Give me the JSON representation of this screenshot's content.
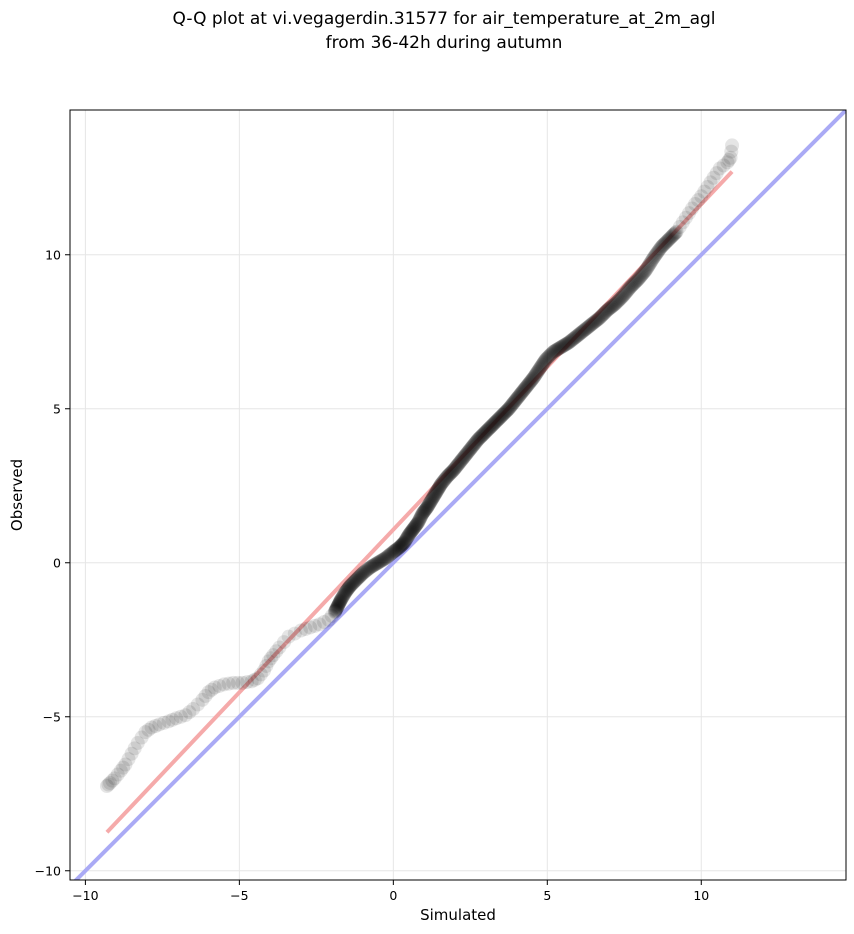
{
  "chart_data": {
    "type": "scatter",
    "title_line1": "Q-Q plot at vi.vegagerdin.31577 for air_temperature_at_2m_agl",
    "title_line2": "from 36-42h during autumn",
    "xlabel": "Simulated",
    "ylabel": "Observed",
    "xlim": [
      -10.5,
      14.7
    ],
    "ylim": [
      -10.3,
      14.7
    ],
    "xticks": [
      -10,
      -5,
      0,
      5,
      10
    ],
    "yticks": [
      -10,
      -5,
      0,
      5,
      10
    ],
    "xtick_labels": [
      "−10",
      "−5",
      "0",
      "5",
      "10"
    ],
    "ytick_labels": [
      "−10",
      "−5",
      "0",
      "5",
      "10"
    ],
    "grid": true,
    "identity_line": {
      "color": "#aaaaf5",
      "x": [
        -10.5,
        14.7
      ],
      "y": [
        -10.5,
        14.7
      ]
    },
    "fit_line": {
      "color": "#f5aaaa",
      "x": [
        -9.3,
        11.0
      ],
      "y": [
        -8.75,
        12.7
      ]
    },
    "points_color": "#000000",
    "quantile_points": [
      [
        -9.3,
        -7.25
      ],
      [
        -9.2,
        -7.15
      ],
      [
        -9.05,
        -7.0
      ],
      [
        -8.85,
        -6.75
      ],
      [
        -8.7,
        -6.55
      ],
      [
        -8.5,
        -6.2
      ],
      [
        -8.3,
        -5.85
      ],
      [
        -8.05,
        -5.5
      ],
      [
        -7.85,
        -5.35
      ],
      [
        -7.6,
        -5.25
      ],
      [
        -7.3,
        -5.15
      ],
      [
        -7.05,
        -5.05
      ],
      [
        -6.75,
        -4.95
      ],
      [
        -6.5,
        -4.75
      ],
      [
        -6.2,
        -4.45
      ],
      [
        -6.0,
        -4.2
      ],
      [
        -5.8,
        -4.05
      ],
      [
        -5.5,
        -3.95
      ],
      [
        -5.2,
        -3.9
      ],
      [
        -4.9,
        -3.9
      ],
      [
        -4.6,
        -3.85
      ],
      [
        -4.4,
        -3.75
      ],
      [
        -4.2,
        -3.5
      ],
      [
        -4.05,
        -3.2
      ],
      [
        -3.9,
        -3.0
      ],
      [
        -3.7,
        -2.75
      ],
      [
        -3.4,
        -2.4
      ],
      [
        -3.0,
        -2.2
      ],
      [
        -2.7,
        -2.1
      ],
      [
        -2.4,
        -2.0
      ],
      [
        -2.1,
        -1.85
      ],
      [
        -1.9,
        -1.6
      ],
      [
        -1.8,
        -1.4
      ],
      [
        -1.7,
        -1.2
      ],
      [
        -1.55,
        -0.95
      ],
      [
        -1.4,
        -0.75
      ],
      [
        -1.2,
        -0.55
      ],
      [
        -1.0,
        -0.35
      ],
      [
        -0.75,
        -0.15
      ],
      [
        -0.5,
        0.0
      ],
      [
        -0.25,
        0.15
      ],
      [
        0.0,
        0.35
      ],
      [
        0.2,
        0.5
      ],
      [
        0.35,
        0.65
      ],
      [
        0.5,
        0.9
      ],
      [
        0.65,
        1.1
      ],
      [
        0.8,
        1.3
      ],
      [
        0.95,
        1.6
      ],
      [
        1.1,
        1.8
      ],
      [
        1.25,
        2.05
      ],
      [
        1.4,
        2.3
      ],
      [
        1.55,
        2.55
      ],
      [
        1.75,
        2.8
      ],
      [
        1.95,
        3.0
      ],
      [
        2.15,
        3.25
      ],
      [
        2.35,
        3.5
      ],
      [
        2.55,
        3.75
      ],
      [
        2.75,
        4.0
      ],
      [
        2.95,
        4.2
      ],
      [
        3.15,
        4.4
      ],
      [
        3.35,
        4.6
      ],
      [
        3.55,
        4.8
      ],
      [
        3.75,
        5.0
      ],
      [
        3.95,
        5.25
      ],
      [
        4.15,
        5.5
      ],
      [
        4.35,
        5.75
      ],
      [
        4.55,
        6.0
      ],
      [
        4.75,
        6.3
      ],
      [
        4.95,
        6.6
      ],
      [
        5.2,
        6.85
      ],
      [
        5.45,
        7.0
      ],
      [
        5.7,
        7.15
      ],
      [
        5.95,
        7.35
      ],
      [
        6.2,
        7.55
      ],
      [
        6.45,
        7.75
      ],
      [
        6.7,
        7.95
      ],
      [
        6.95,
        8.2
      ],
      [
        7.2,
        8.4
      ],
      [
        7.45,
        8.65
      ],
      [
        7.7,
        8.95
      ],
      [
        7.95,
        9.2
      ],
      [
        8.2,
        9.5
      ],
      [
        8.45,
        9.9
      ],
      [
        8.7,
        10.25
      ],
      [
        8.95,
        10.5
      ],
      [
        9.2,
        10.75
      ],
      [
        9.4,
        11.05
      ],
      [
        9.6,
        11.35
      ],
      [
        9.8,
        11.65
      ],
      [
        10.0,
        11.9
      ],
      [
        10.2,
        12.2
      ],
      [
        10.4,
        12.5
      ],
      [
        10.6,
        12.8
      ],
      [
        10.85,
        13.0
      ],
      [
        10.95,
        13.15
      ],
      [
        11.0,
        13.55
      ]
    ]
  }
}
